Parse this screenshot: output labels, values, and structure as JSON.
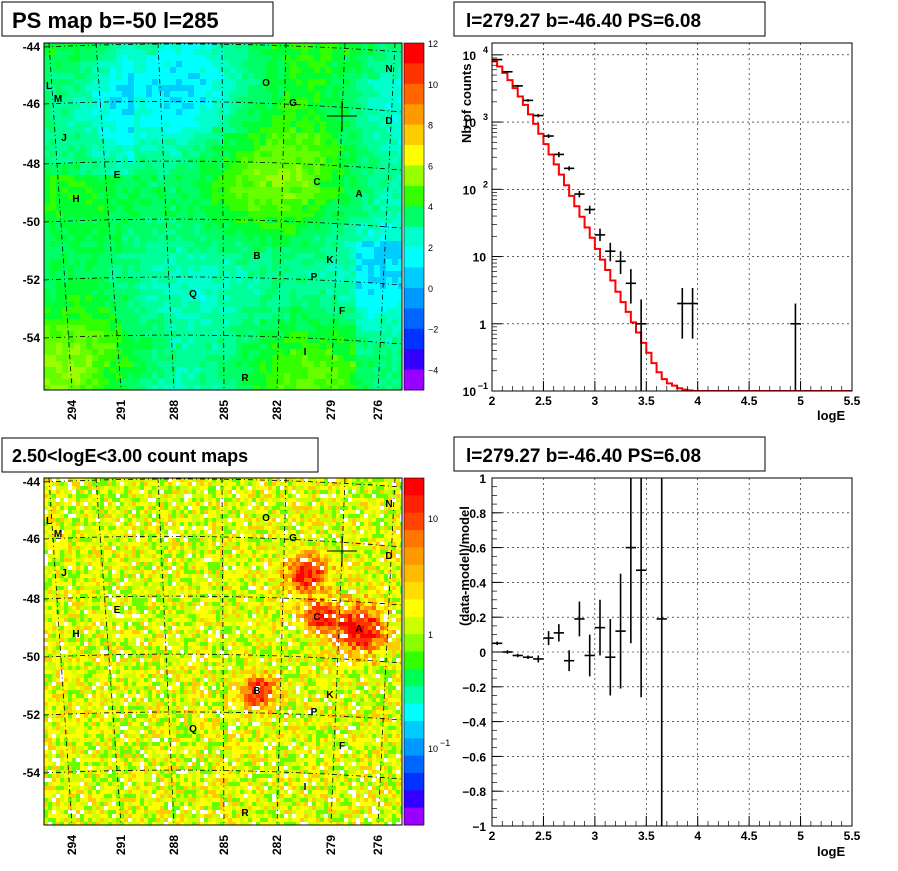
{
  "panels": {
    "ps_map": {
      "title": "PS map b=-50 l=285"
    },
    "count_map": {
      "title": "2.50<logE<3.00 count maps"
    },
    "spectrum": {
      "title": "l=279.27 b=-46.40 PS=6.08",
      "xlabel": "logE",
      "ylabel": "Nb of counts"
    },
    "residual": {
      "title": "l=279.27 b=-46.40 PS=6.08",
      "xlabel": "logE",
      "ylabel": "(data-model)/model"
    }
  },
  "map_axes": {
    "lat_ticks": [
      "-44",
      "-46",
      "-48",
      "-50",
      "-52",
      "-54"
    ],
    "lon_ticks": [
      "294",
      "291",
      "288",
      "285",
      "282",
      "279",
      "276"
    ]
  },
  "ps_colorbar": {
    "ticks": [
      "12",
      "10",
      "8",
      "6",
      "4",
      "2",
      "0",
      "−2",
      "−4"
    ]
  },
  "count_colorbar": {
    "ticks": [
      "10",
      "1",
      "10",
      "−1"
    ]
  },
  "sources": [
    {
      "label": "O"
    },
    {
      "label": "N"
    },
    {
      "label": "L"
    },
    {
      "label": "M"
    },
    {
      "label": "G"
    },
    {
      "label": "D"
    },
    {
      "label": "J"
    },
    {
      "label": "E"
    },
    {
      "label": "C"
    },
    {
      "label": "A"
    },
    {
      "label": "H"
    },
    {
      "label": "B"
    },
    {
      "label": "K"
    },
    {
      "label": "P"
    },
    {
      "label": "Q"
    },
    {
      "label": "F"
    },
    {
      "label": "I"
    },
    {
      "label": "R"
    }
  ],
  "colors": {
    "model_line": "#ff0000",
    "data_points": "#000000"
  },
  "chart_data": [
    {
      "type": "heatmap",
      "title": "PS map b=-50 l=285",
      "xlabel": "",
      "ylabel": "",
      "x_ticks": [
        294,
        291,
        288,
        285,
        282,
        279,
        276
      ],
      "y_ticks": [
        -44,
        -46,
        -48,
        -50,
        -52,
        -54
      ],
      "z_range": [
        -5,
        12
      ],
      "marked_position": {
        "l": 279.27,
        "b": -46.4
      }
    },
    {
      "type": "heatmap",
      "title": "2.50<logE<3.00 count maps",
      "xlabel": "",
      "ylabel": "",
      "x_ticks": [
        294,
        291,
        288,
        285,
        282,
        279,
        276
      ],
      "y_ticks": [
        -44,
        -46,
        -48,
        -50,
        -52,
        -54
      ],
      "z_scale": "log",
      "z_range": [
        0.04,
        20
      ]
    },
    {
      "type": "line",
      "title": "l=279.27 b=-46.40 PS=6.08",
      "xlabel": "logE",
      "ylabel": "Nb of counts",
      "xlim": [
        2,
        5.5
      ],
      "ylim": [
        0.1,
        15000
      ],
      "yscale": "log",
      "grid": true,
      "x_ticks": [
        "2",
        "2.5",
        "3",
        "3.5",
        "4",
        "4.5",
        "5",
        "5.5"
      ],
      "y_ticks": [
        {
          "v": 0.1,
          "base": "10",
          "exp": "−1"
        },
        {
          "v": 1,
          "base": "1",
          "exp": ""
        },
        {
          "v": 10,
          "base": "10",
          "exp": ""
        },
        {
          "v": 100,
          "base": "10",
          "exp": "2"
        },
        {
          "v": 1000,
          "base": "10",
          "exp": "3"
        },
        {
          "v": 10000,
          "base": "10",
          "exp": "4"
        }
      ],
      "series": [
        {
          "kind": "step",
          "x_edges": [
            2,
            2.05,
            2.1,
            2.15,
            2.2,
            2.25,
            2.3,
            2.35,
            2.4,
            2.45,
            2.5,
            2.55,
            2.6,
            2.65,
            2.7,
            2.75,
            2.8,
            2.85,
            2.9,
            2.95,
            3.0,
            3.05,
            3.1,
            3.15,
            3.2,
            3.25,
            3.3,
            3.35,
            3.4,
            3.45,
            3.5,
            3.55,
            3.6,
            3.65,
            3.7,
            3.75,
            3.8,
            3.85,
            3.9,
            3.95,
            4.0,
            5.5
          ],
          "values": [
            8000,
            6700,
            5400,
            4200,
            3200,
            2400,
            1800,
            1300,
            940,
            670,
            470,
            330,
            235,
            165,
            115,
            80,
            56,
            39,
            27,
            19,
            13,
            9,
            6.3,
            4.4,
            3.0,
            2.1,
            1.5,
            1.05,
            0.74,
            0.52,
            0.37,
            0.26,
            0.19,
            0.15,
            0.13,
            0.12,
            0.11,
            0.105,
            0.102,
            0.1,
            0.1
          ]
        },
        {
          "kind": "errorbars",
          "points": [
            {
              "x": 2.05,
              "y": 8500,
              "lo": 8300,
              "hi": 8700
            },
            {
              "x": 2.15,
              "y": 5600,
              "lo": 5450,
              "hi": 5750
            },
            {
              "x": 2.25,
              "y": 3450,
              "lo": 3330,
              "hi": 3570
            },
            {
              "x": 2.35,
              "y": 2100,
              "lo": 2010,
              "hi": 2190
            },
            {
              "x": 2.45,
              "y": 1250,
              "lo": 1180,
              "hi": 1320
            },
            {
              "x": 2.55,
              "y": 620,
              "lo": 580,
              "hi": 660
            },
            {
              "x": 2.65,
              "y": 330,
              "lo": 300,
              "hi": 360
            },
            {
              "x": 2.75,
              "y": 205,
              "lo": 190,
              "hi": 220
            },
            {
              "x": 2.85,
              "y": 85,
              "lo": 76,
              "hi": 95
            },
            {
              "x": 2.95,
              "y": 50,
              "lo": 43,
              "hi": 57
            },
            {
              "x": 3.05,
              "y": 21,
              "lo": 17,
              "hi": 26
            },
            {
              "x": 3.15,
              "y": 12,
              "lo": 8.5,
              "hi": 16
            },
            {
              "x": 3.25,
              "y": 8.5,
              "lo": 5.5,
              "hi": 12
            },
            {
              "x": 3.35,
              "y": 4,
              "lo": 2,
              "hi": 6.5
            },
            {
              "x": 3.45,
              "y": 1,
              "lo": 0.1,
              "hi": 2.3
            },
            {
              "x": 3.85,
              "y": 2,
              "lo": 0.6,
              "hi": 3.4
            },
            {
              "x": 3.95,
              "y": 2,
              "lo": 0.6,
              "hi": 3.4
            },
            {
              "x": 4.95,
              "y": 1,
              "lo": 0.1,
              "hi": 2
            }
          ]
        }
      ]
    },
    {
      "type": "scatter",
      "title": "l=279.27 b=-46.40 PS=6.08",
      "xlabel": "logE",
      "ylabel": "(data-model)/model",
      "xlim": [
        2,
        5.5
      ],
      "ylim": [
        -1,
        1
      ],
      "grid": true,
      "x_ticks": [
        "2",
        "2.5",
        "3",
        "3.5",
        "4",
        "4.5",
        "5",
        "5.5"
      ],
      "y_ticks": [
        "1",
        "0.8",
        "0.6",
        "0.4",
        "0.2",
        "0",
        "−0.2",
        "−0.4",
        "−0.6",
        "−0.8",
        "−1"
      ],
      "series": [
        {
          "points": [
            {
              "x": 2.05,
              "y": 0.05,
              "err": 0.01
            },
            {
              "x": 2.15,
              "y": 0.0,
              "err": 0.01
            },
            {
              "x": 2.25,
              "y": -0.02,
              "err": 0.01
            },
            {
              "x": 2.35,
              "y": -0.03,
              "err": 0.01
            },
            {
              "x": 2.45,
              "y": -0.04,
              "err": 0.02
            },
            {
              "x": 2.55,
              "y": 0.08,
              "err": 0.04
            },
            {
              "x": 2.65,
              "y": 0.11,
              "err": 0.05
            },
            {
              "x": 2.75,
              "y": -0.05,
              "err": 0.06
            },
            {
              "x": 2.85,
              "y": 0.19,
              "err": 0.1
            },
            {
              "x": 2.95,
              "y": -0.02,
              "err": 0.12
            },
            {
              "x": 3.05,
              "y": 0.14,
              "err": 0.16
            },
            {
              "x": 3.15,
              "y": -0.03,
              "err": 0.22
            },
            {
              "x": 3.25,
              "y": 0.12,
              "err": 0.33
            },
            {
              "x": 3.35,
              "y": 0.6,
              "err": 0.55
            },
            {
              "x": 3.45,
              "y": 0.47,
              "err": 0.73
            },
            {
              "x": 3.65,
              "y": 0.19,
              "err": 1.5
            }
          ]
        }
      ]
    }
  ]
}
